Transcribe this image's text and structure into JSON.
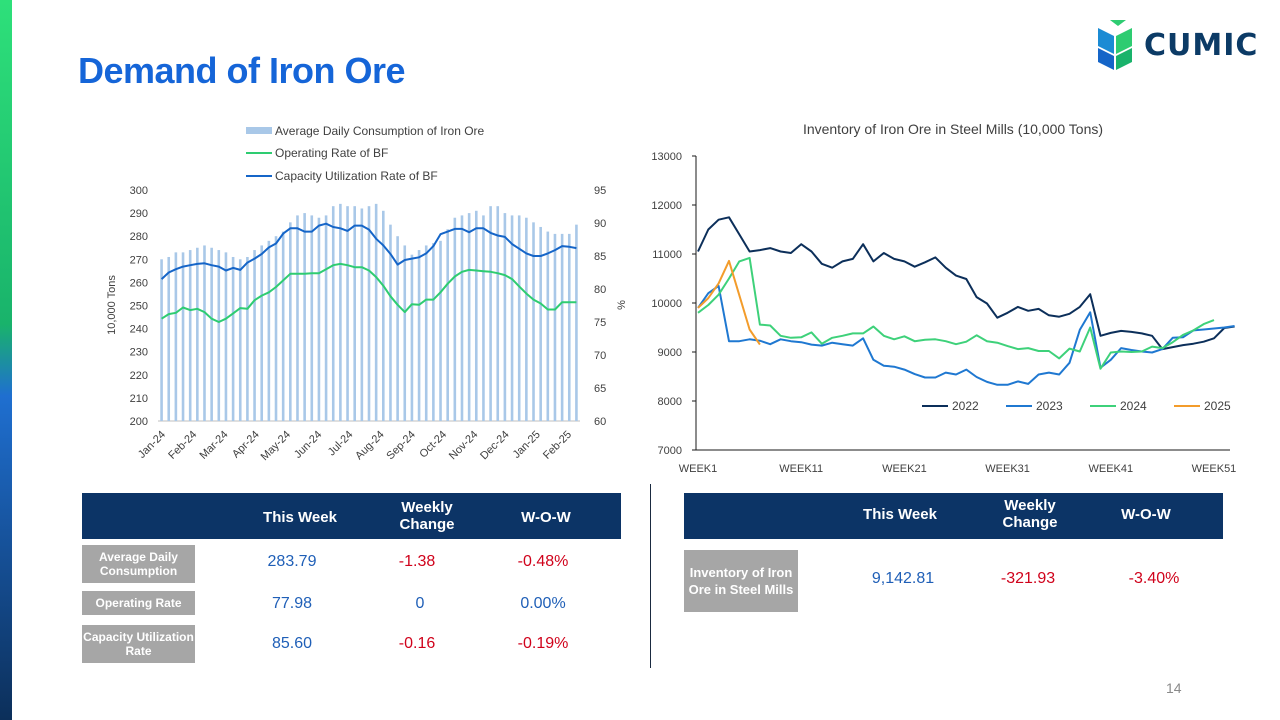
{
  "page": {
    "title": "Demand of Iron Ore",
    "logo_text": "CUMIC",
    "page_number": "14"
  },
  "colors": {
    "title": "#1565d8",
    "bar": "#a9c8e8",
    "operating": "#2ecc71",
    "capacity": "#1565c8",
    "y2022": "#0c2f5a",
    "y2023": "#1f78d1",
    "y2024": "#3ed17a",
    "y2025": "#f39c2b",
    "table_header": "#0c3466"
  },
  "chart_data": [
    {
      "type": "bar+line",
      "legend": [
        "Average Daily Consumption of Iron Ore",
        "Operating Rate of BF",
        "Capacity Utilization Rate of BF"
      ],
      "ylabel": "10,000 Tons",
      "y2label": "%",
      "ylim": [
        200,
        300
      ],
      "y2lim": [
        60,
        95
      ],
      "yticks": [
        "300",
        "290",
        "280",
        "270",
        "260",
        "250",
        "240",
        "230",
        "220",
        "210",
        "200"
      ],
      "y2ticks": [
        "95",
        "90",
        "85",
        "80",
        "75",
        "70",
        "65",
        "60"
      ],
      "xticks": [
        "Jan-24",
        "Feb-24",
        "Mar-24",
        "Apr-24",
        "May-24",
        "Jun-24",
        "Jul-24",
        "Aug-24",
        "Sep-24",
        "Oct-24",
        "Nov-24",
        "Dec-24",
        "Jan-25",
        "Feb-25"
      ],
      "bars": [
        270,
        271,
        273,
        273,
        274,
        275,
        276,
        275,
        274,
        273,
        271,
        270,
        271,
        274,
        276,
        278,
        280,
        282,
        286,
        289,
        290,
        289,
        288,
        289,
        293,
        294,
        293,
        293,
        292,
        293,
        294,
        291,
        285,
        280,
        276,
        272,
        274,
        276,
        277,
        278,
        283,
        288,
        289,
        290,
        291,
        289,
        293,
        293,
        290,
        289,
        289,
        288,
        286,
        284,
        282,
        281,
        281,
        281,
        285
      ],
      "operating": [
        75.5,
        76.2,
        76.4,
        77.2,
        76.8,
        77.0,
        76.5,
        75.5,
        75.0,
        75.5,
        76.3,
        77.1,
        77.0,
        78.3,
        79.0,
        79.5,
        80.3,
        81.3,
        82.3,
        82.3,
        82.3,
        82.4,
        82.4,
        83.0,
        83.6,
        83.8,
        83.6,
        83.3,
        83.3,
        82.8,
        81.8,
        80.5,
        78.9,
        77.6,
        76.5,
        77.7,
        77.6,
        78.4,
        78.4,
        79.5,
        80.8,
        81.9,
        82.6,
        82.9,
        82.8,
        82.7,
        82.6,
        82.4,
        82.1,
        81.5,
        80.4,
        79.3,
        78.4,
        77.8,
        76.9,
        76.9,
        78.0,
        78.0,
        78.0
      ],
      "capacity": [
        81.5,
        82.5,
        83.0,
        83.4,
        83.6,
        83.8,
        83.9,
        83.6,
        83.4,
        82.8,
        83.2,
        82.9,
        84.0,
        84.6,
        85.3,
        86.3,
        86.9,
        88.4,
        89.2,
        89.2,
        88.7,
        88.7,
        89.6,
        89.9,
        89.4,
        89.2,
        88.8,
        89.6,
        89.6,
        89.0,
        87.6,
        86.6,
        85.3,
        83.7,
        84.4,
        84.6,
        84.8,
        85.4,
        86.5,
        88.3,
        88.7,
        89.1,
        89.1,
        88.6,
        89.2,
        89.2,
        88.5,
        88.1,
        87.9,
        86.8,
        86.1,
        85.4,
        85.0,
        85.0,
        85.4,
        85.9,
        86.5,
        86.4,
        86.2
      ],
      "table": {
        "headers": [
          "This Week",
          "Weekly Change",
          "W-O-W"
        ],
        "rows": [
          {
            "label": "Average Daily Consumption",
            "this_week": "283.79",
            "weekly_change": "-1.38",
            "wow": "-0.48%"
          },
          {
            "label": "Operating Rate",
            "this_week": "77.98",
            "weekly_change": "0",
            "wow": "0.00%"
          },
          {
            "label": "Capacity Utilization Rate",
            "this_week": "85.60",
            "weekly_change": "-0.16",
            "wow": "-0.19%"
          }
        ]
      }
    },
    {
      "type": "line",
      "title": "Inventory of Iron Ore in  Steel Mills (10,000 Tons)",
      "ylim": [
        7000,
        13000
      ],
      "yticks": [
        "13000",
        "12000",
        "11000",
        "10000",
        "9000",
        "8000",
        "7000"
      ],
      "xticks": [
        "WEEK1",
        "WEEK11",
        "WEEK21",
        "WEEK31",
        "WEEK41",
        "WEEK51"
      ],
      "xtick_weeks": [
        1,
        11,
        21,
        31,
        41,
        51
      ],
      "series": [
        {
          "name": "2022",
          "values": [
            11050,
            11500,
            11700,
            11750,
            11400,
            11050,
            11080,
            11120,
            11050,
            11020,
            11200,
            11050,
            10800,
            10720,
            10850,
            10900,
            11200,
            10850,
            11020,
            10900,
            10850,
            10740,
            10830,
            10930,
            10720,
            10560,
            10490,
            10120,
            9990,
            9700,
            9800,
            9920,
            9840,
            9880,
            9750,
            9720,
            9780,
            9920,
            10180,
            9330,
            9390,
            9430,
            9410,
            9380,
            9330,
            9060,
            9100,
            9140,
            9170,
            9210,
            9280,
            9490,
            9520
          ]
        },
        {
          "name": "2023",
          "values": [
            9900,
            10200,
            10350,
            9220,
            9220,
            9260,
            9230,
            9160,
            9260,
            9220,
            9200,
            9150,
            9130,
            9190,
            9160,
            9130,
            9280,
            8840,
            8720,
            8700,
            8640,
            8550,
            8480,
            8480,
            8580,
            8540,
            8640,
            8490,
            8390,
            8330,
            8330,
            8400,
            8350,
            8540,
            8580,
            8540,
            8780,
            9450,
            9810,
            8680,
            8840,
            9080,
            9040,
            9010,
            8990,
            9060,
            9290,
            9300,
            9440,
            9460,
            9480,
            9500,
            9530
          ]
        },
        {
          "name": "2024",
          "values": [
            9800,
            9960,
            10170,
            10500,
            10850,
            10920,
            9560,
            9540,
            9330,
            9290,
            9300,
            9400,
            9170,
            9290,
            9330,
            9380,
            9380,
            9520,
            9330,
            9260,
            9320,
            9220,
            9250,
            9260,
            9220,
            9160,
            9210,
            9340,
            9220,
            9190,
            9120,
            9060,
            9080,
            9020,
            9020,
            8870,
            9070,
            9010,
            9500,
            8660,
            8990,
            9010,
            9000,
            9010,
            9110,
            9080,
            9200,
            9350,
            9440,
            9570,
            9650
          ]
        },
        {
          "name": "2025",
          "values": [
            9900,
            10100,
            10400,
            10860,
            10160,
            9460,
            9150
          ]
        }
      ]
    }
  ],
  "inventory_table": {
    "headers": [
      "This Week",
      "Weekly Change",
      "W-O-W"
    ],
    "rows": [
      {
        "label": "Inventory of Iron Ore in Steel Mills",
        "this_week": "9,142.81",
        "weekly_change": "-321.93",
        "wow": "-3.40%"
      }
    ]
  }
}
